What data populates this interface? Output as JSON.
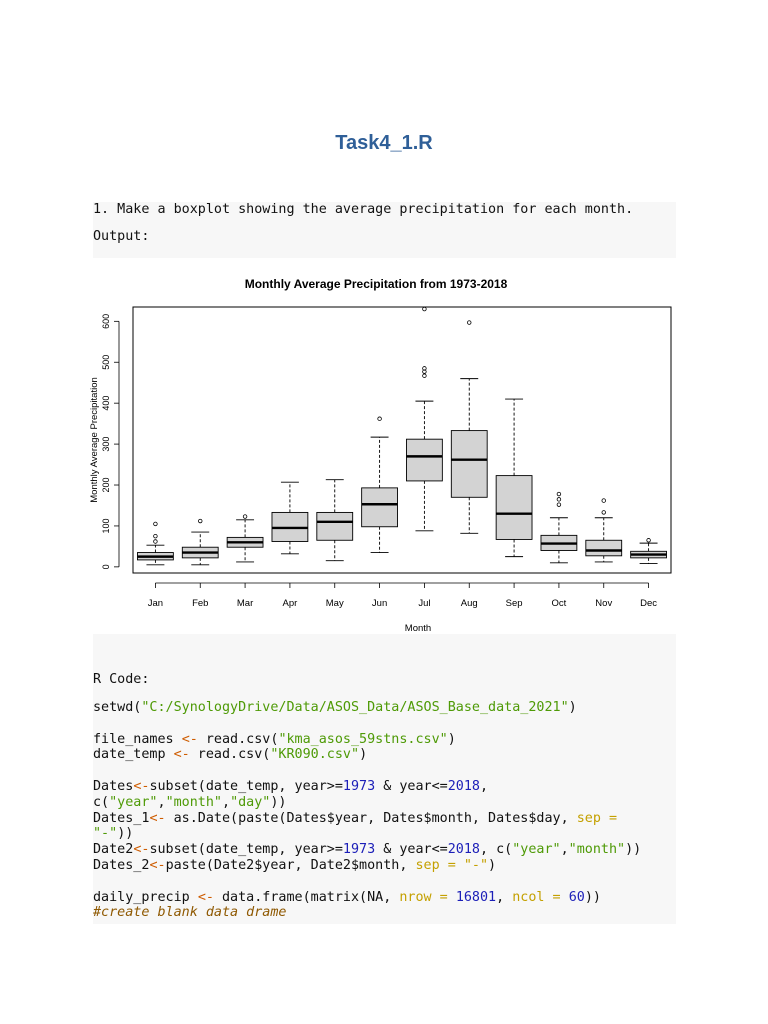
{
  "doc": {
    "title": "Task4_1.R",
    "instruction": "1. Make a boxplot showing the average precipitation for each month.",
    "output_label": "Output:",
    "rcode_label": "R Code:"
  },
  "chart_data": {
    "type": "boxplot",
    "title": "Monthly Average Precipitation from 1973-2018",
    "xlabel": "Month",
    "ylabel": "Monthly Average Precipitation",
    "ylim": [
      -15,
      635
    ],
    "yticks": [
      0,
      100,
      200,
      300,
      400,
      500,
      600
    ],
    "grid": false,
    "categories": [
      "Jan",
      "Feb",
      "Mar",
      "Apr",
      "May",
      "Jun",
      "Jul",
      "Aug",
      "Sep",
      "Oct",
      "Nov",
      "Dec"
    ],
    "boxes": [
      {
        "min": 5,
        "q1": 17,
        "median": 25,
        "q3": 35,
        "max": 53,
        "outliers": [
          62,
          75,
          105
        ]
      },
      {
        "min": 5,
        "q1": 22,
        "median": 35,
        "q3": 48,
        "max": 85,
        "outliers": [
          112
        ]
      },
      {
        "min": 12,
        "q1": 48,
        "median": 60,
        "q3": 72,
        "max": 115,
        "outliers": [
          123
        ]
      },
      {
        "min": 32,
        "q1": 62,
        "median": 95,
        "q3": 133,
        "max": 207,
        "outliers": []
      },
      {
        "min": 15,
        "q1": 65,
        "median": 110,
        "q3": 133,
        "max": 213,
        "outliers": []
      },
      {
        "min": 35,
        "q1": 98,
        "median": 153,
        "q3": 193,
        "max": 317,
        "outliers": [
          362
        ]
      },
      {
        "min": 88,
        "q1": 210,
        "median": 270,
        "q3": 312,
        "max": 405,
        "outliers": [
          467,
          477,
          485,
          630
        ]
      },
      {
        "min": 82,
        "q1": 170,
        "median": 262,
        "q3": 333,
        "max": 460,
        "outliers": [
          597
        ]
      },
      {
        "min": 25,
        "q1": 67,
        "median": 130,
        "q3": 223,
        "max": 410,
        "outliers": []
      },
      {
        "min": 10,
        "q1": 40,
        "median": 57,
        "q3": 77,
        "max": 120,
        "outliers": [
          152,
          165,
          178
        ]
      },
      {
        "min": 12,
        "q1": 27,
        "median": 40,
        "q3": 65,
        "max": 120,
        "outliers": [
          133,
          162
        ]
      },
      {
        "min": 8,
        "q1": 22,
        "median": 30,
        "q3": 38,
        "max": 58,
        "outliers": [
          65
        ]
      }
    ]
  },
  "code": [
    [
      {
        "t": "setwd(",
        "c": ""
      },
      {
        "t": "\"C:/SynologyDrive/Data/ASOS_Data/ASOS_Base_data_2021\"",
        "c": "str"
      },
      {
        "t": ")",
        "c": ""
      }
    ],
    [],
    [
      {
        "t": "file_names ",
        "c": ""
      },
      {
        "t": "<-",
        "c": "assign"
      },
      {
        "t": " read.csv(",
        "c": ""
      },
      {
        "t": "\"kma_asos_59stns.csv\"",
        "c": "str"
      },
      {
        "t": ")",
        "c": ""
      }
    ],
    [
      {
        "t": "date_temp ",
        "c": ""
      },
      {
        "t": "<-",
        "c": "assign"
      },
      {
        "t": " read.csv(",
        "c": ""
      },
      {
        "t": "\"KR090.csv\"",
        "c": "str"
      },
      {
        "t": ")",
        "c": ""
      }
    ],
    [],
    [
      {
        "t": "Dates",
        "c": ""
      },
      {
        "t": "<-",
        "c": "assign"
      },
      {
        "t": "subset(date_temp, year>=",
        "c": ""
      },
      {
        "t": "1973",
        "c": "num"
      },
      {
        "t": " & year<=",
        "c": ""
      },
      {
        "t": "2018",
        "c": "num"
      },
      {
        "t": ",",
        "c": ""
      }
    ],
    [
      {
        "t": "c(",
        "c": ""
      },
      {
        "t": "\"year\"",
        "c": "str"
      },
      {
        "t": ",",
        "c": ""
      },
      {
        "t": "\"month\"",
        "c": "str"
      },
      {
        "t": ",",
        "c": ""
      },
      {
        "t": "\"day\"",
        "c": "str"
      },
      {
        "t": "))",
        "c": ""
      }
    ],
    [
      {
        "t": "Dates_1",
        "c": ""
      },
      {
        "t": "<-",
        "c": "assign"
      },
      {
        "t": " as.Date(paste(Dates$year, Dates$month, Dates$day, ",
        "c": ""
      },
      {
        "t": "sep =",
        "c": "arg"
      }
    ],
    [
      {
        "t": "\"-\"",
        "c": "str"
      },
      {
        "t": "))",
        "c": ""
      }
    ],
    [
      {
        "t": "Date2",
        "c": ""
      },
      {
        "t": "<-",
        "c": "assign"
      },
      {
        "t": "subset(date_temp, year>=",
        "c": ""
      },
      {
        "t": "1973",
        "c": "num"
      },
      {
        "t": " & year<=",
        "c": ""
      },
      {
        "t": "2018",
        "c": "num"
      },
      {
        "t": ", c(",
        "c": ""
      },
      {
        "t": "\"year\"",
        "c": "str"
      },
      {
        "t": ",",
        "c": ""
      },
      {
        "t": "\"month\"",
        "c": "str"
      },
      {
        "t": "))",
        "c": ""
      }
    ],
    [
      {
        "t": "Dates_2",
        "c": ""
      },
      {
        "t": "<-",
        "c": "assign"
      },
      {
        "t": "paste(Date2$year, Date2$month, ",
        "c": ""
      },
      {
        "t": "sep = \"-\"",
        "c": "arg"
      },
      {
        "t": ")",
        "c": ""
      }
    ],
    [],
    [
      {
        "t": "daily_precip ",
        "c": ""
      },
      {
        "t": "<-",
        "c": "assign"
      },
      {
        "t": " data.frame(matrix(NA, ",
        "c": ""
      },
      {
        "t": "nrow =",
        "c": "arg"
      },
      {
        "t": " ",
        "c": ""
      },
      {
        "t": "16801",
        "c": "num"
      },
      {
        "t": ", ",
        "c": ""
      },
      {
        "t": "ncol =",
        "c": "arg"
      },
      {
        "t": " ",
        "c": ""
      },
      {
        "t": "60",
        "c": "num"
      },
      {
        "t": "))",
        "c": ""
      }
    ],
    [
      {
        "t": "#create blank data drame",
        "c": "cmt"
      }
    ]
  ]
}
